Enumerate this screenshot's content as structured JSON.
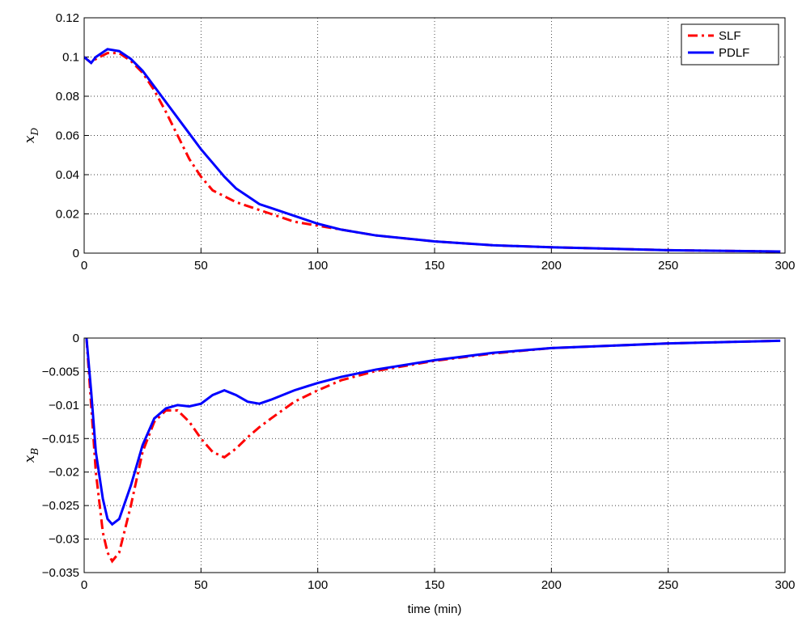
{
  "chart_data": [
    {
      "type": "line",
      "ylabel": {
        "base": "x",
        "sub": "D"
      },
      "x": [
        0,
        3,
        5,
        10,
        15,
        20,
        25,
        30,
        35,
        40,
        45,
        50,
        55,
        60,
        65,
        70,
        75,
        80,
        90,
        100,
        110,
        125,
        150,
        175,
        200,
        250,
        298
      ],
      "series": [
        {
          "name": "SLF",
          "color": "#ff0000",
          "linestyle": "dashdot",
          "linewidth": 3,
          "values": [
            0.1,
            0.097,
            0.099,
            0.102,
            0.102,
            0.098,
            0.092,
            0.083,
            0.072,
            0.06,
            0.048,
            0.039,
            0.032,
            0.029,
            0.026,
            0.024,
            0.022,
            0.02,
            0.016,
            0.014,
            0.012,
            0.009,
            0.006,
            0.004,
            0.003,
            0.0015,
            0.0008
          ]
        },
        {
          "name": "PDLF",
          "color": "#0000ff",
          "linestyle": "solid",
          "linewidth": 3,
          "values": [
            0.1,
            0.097,
            0.1,
            0.104,
            0.103,
            0.099,
            0.093,
            0.085,
            0.077,
            0.069,
            0.061,
            0.053,
            0.046,
            0.039,
            0.033,
            0.029,
            0.025,
            0.023,
            0.019,
            0.015,
            0.012,
            0.009,
            0.006,
            0.004,
            0.003,
            0.0015,
            0.0008
          ]
        }
      ],
      "xlim": [
        0,
        300
      ],
      "xticks": [
        0,
        50,
        100,
        150,
        200,
        250,
        300
      ],
      "ylim": [
        0,
        0.12
      ],
      "yticks": [
        0,
        0.02,
        0.04,
        0.06,
        0.08,
        0.1,
        0.12
      ],
      "grid": true,
      "legend": "upper right"
    },
    {
      "type": "line",
      "ylabel": {
        "base": "x",
        "sub": "B"
      },
      "xlabel": "time (min)",
      "x": [
        1,
        3,
        5,
        8,
        10,
        12,
        15,
        20,
        25,
        30,
        35,
        40,
        45,
        50,
        55,
        60,
        65,
        70,
        75,
        80,
        90,
        100,
        110,
        125,
        150,
        175,
        200,
        250,
        298
      ],
      "series": [
        {
          "name": "SLF",
          "color": "#ff0000",
          "linestyle": "dashdot",
          "linewidth": 3,
          "values": [
            0,
            -0.01,
            -0.02,
            -0.029,
            -0.032,
            -0.0333,
            -0.032,
            -0.025,
            -0.017,
            -0.0125,
            -0.0108,
            -0.0108,
            -0.0125,
            -0.015,
            -0.017,
            -0.0178,
            -0.0165,
            -0.0148,
            -0.0133,
            -0.012,
            -0.0095,
            -0.0078,
            -0.0063,
            -0.0049,
            -0.0034,
            -0.0023,
            -0.0015,
            -0.0008,
            -0.0004
          ]
        },
        {
          "name": "PDLF",
          "color": "#0000ff",
          "linestyle": "solid",
          "linewidth": 3,
          "values": [
            0,
            -0.008,
            -0.017,
            -0.024,
            -0.027,
            -0.0278,
            -0.027,
            -0.022,
            -0.016,
            -0.012,
            -0.0105,
            -0.01,
            -0.0102,
            -0.0098,
            -0.0085,
            -0.0078,
            -0.0085,
            -0.0095,
            -0.0098,
            -0.0092,
            -0.0078,
            -0.0067,
            -0.0058,
            -0.0047,
            -0.0033,
            -0.0022,
            -0.0015,
            -0.0008,
            -0.0004
          ]
        }
      ],
      "xlim": [
        0,
        300
      ],
      "xticks": [
        0,
        50,
        100,
        150,
        200,
        250,
        300
      ],
      "ylim": [
        -0.035,
        0
      ],
      "yticks": [
        {
          "value": -0.035,
          "label": "−0.035"
        },
        {
          "value": -0.03,
          "label": "−0.03"
        },
        {
          "value": -0.025,
          "label": "−0.025"
        },
        {
          "value": -0.02,
          "label": "−0.02"
        },
        {
          "value": -0.015,
          "label": "−0.015"
        },
        {
          "value": -0.01,
          "label": "−0.01"
        },
        {
          "value": -0.005,
          "label": "−0.005"
        },
        0
      ],
      "grid": true,
      "legend": "none"
    }
  ]
}
